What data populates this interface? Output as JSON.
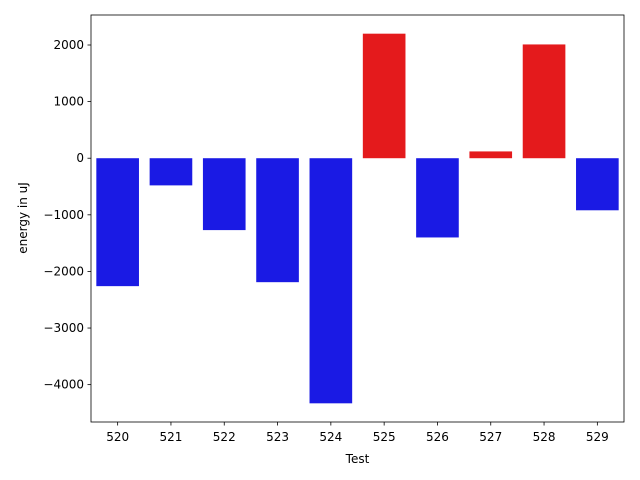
{
  "chart_data": {
    "type": "bar",
    "title": "",
    "xlabel": "Test",
    "ylabel": "energy in uJ",
    "categories": [
      "520",
      "521",
      "522",
      "523",
      "524",
      "525",
      "526",
      "527",
      "528",
      "529"
    ],
    "values": [
      -2260,
      -480,
      -1270,
      -2190,
      -4330,
      2200,
      -1400,
      120,
      2010,
      -920
    ],
    "ylim": [
      -4660,
      2530
    ],
    "yticks": [
      -4000,
      -3000,
      -2000,
      -1000,
      0,
      1000,
      2000
    ],
    "ytick_labels": [
      "−4000",
      "−3000",
      "−2000",
      "−1000",
      "0",
      "1000",
      "2000"
    ],
    "grid": false,
    "legend": false,
    "colors": {
      "positive": "#e41a1c",
      "negative": "#1a1ae4"
    }
  }
}
